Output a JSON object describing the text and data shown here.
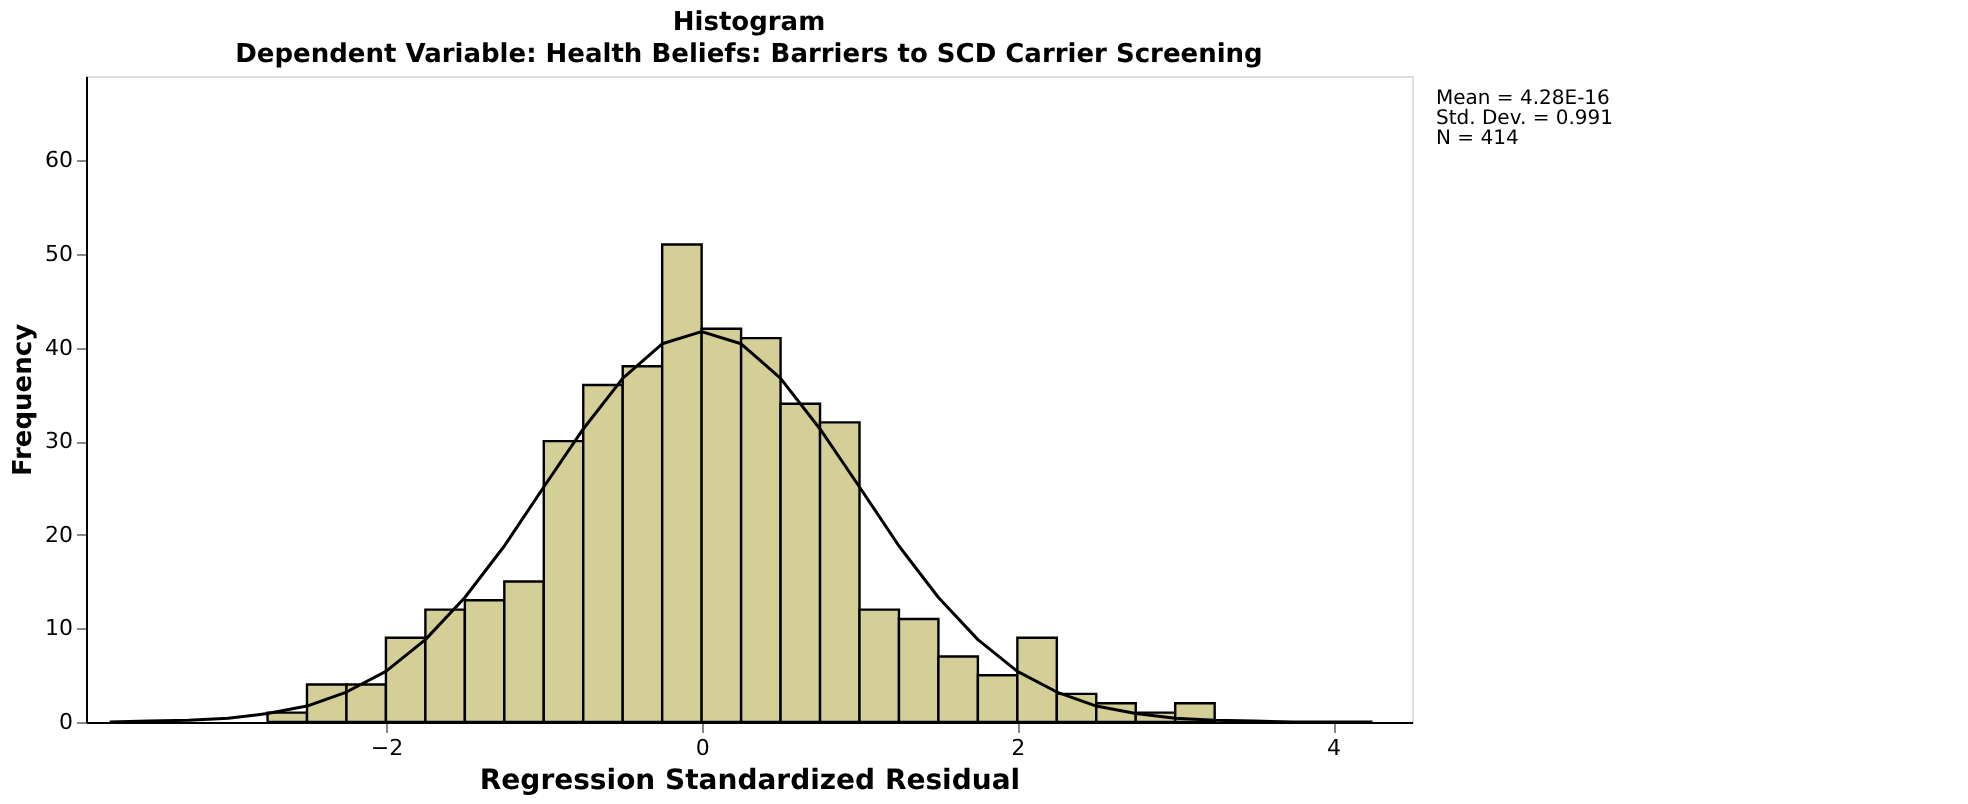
{
  "chart_data": {
    "type": "histogram",
    "title": "Histogram",
    "subtitle": "Dependent Variable: Health Beliefs: Barriers to SCD Carrier Screening",
    "xlabel": "Regression Standardized Residual",
    "ylabel": "Frequency",
    "bins": [
      -2.75,
      -2.5,
      -2.25,
      -2,
      -1.75,
      -1.5,
      -1.25,
      -1,
      -0.75,
      -0.5,
      -0.25,
      0,
      0.25,
      0.5,
      0.75,
      1,
      1.25,
      1.5,
      1.75,
      2,
      2.25,
      2.5,
      2.75,
      3,
      3.25
    ],
    "values": [
      1,
      4,
      4,
      9,
      12,
      13,
      15,
      30,
      36,
      38,
      51,
      42,
      41,
      34,
      32,
      12,
      11,
      7,
      5,
      9,
      3,
      2,
      1,
      2
    ],
    "color": "#d3cf96",
    "series": [
      {
        "type": "line",
        "color": "#000000",
        "x": [
          -3.75,
          -3.5,
          -3.25,
          -3,
          -2.75,
          -2.5,
          -2.25,
          -2,
          -1.75,
          -1.5,
          -1.25,
          -1,
          -0.75,
          -0.5,
          -0.25,
          0,
          0.25,
          0.5,
          0.75,
          1,
          1.25,
          1.5,
          1.75,
          2,
          2.25,
          2.5,
          2.75,
          3,
          3.25,
          3.5,
          3.75,
          4,
          4.25
        ],
        "values": [
          0,
          0.1,
          0.2,
          0.4,
          0.9,
          1.7,
          3.2,
          5.4,
          8.8,
          13.3,
          18.8,
          25.1,
          31.3,
          36.7,
          40.4,
          41.7,
          40.4,
          36.7,
          31.3,
          25.1,
          18.8,
          13.3,
          8.8,
          5.4,
          3.2,
          1.7,
          0.9,
          0.4,
          0.2,
          0.1,
          0,
          0,
          0
        ]
      }
    ],
    "xlim": [
      -3.9,
      4.5
    ],
    "ylim": [
      0,
      69
    ],
    "xticks": [
      -2,
      0,
      2,
      4
    ],
    "yticks": [
      0,
      10,
      20,
      30,
      40,
      50,
      60
    ],
    "grid": false,
    "legend": false,
    "marker": "none",
    "line_style": "solid",
    "annotations": [
      "Mean = 4.28E-16",
      "Std. Dev. = 0.991",
      "N = 414"
    ]
  }
}
